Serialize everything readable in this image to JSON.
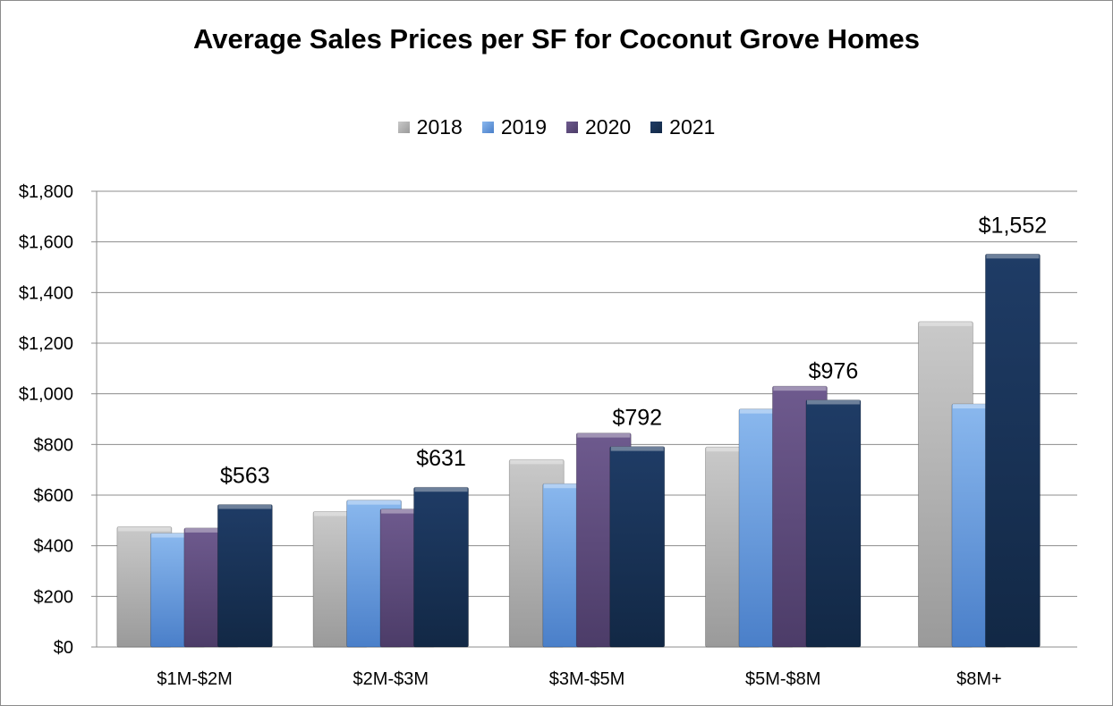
{
  "chart_data": {
    "type": "bar",
    "title": "Average Sales Prices per SF for Coconut Grove Homes",
    "xlabel": "",
    "ylabel": "",
    "ylim": [
      0,
      1800
    ],
    "y_ticks": [
      0,
      200,
      400,
      600,
      800,
      1000,
      1200,
      1400,
      1600,
      1800
    ],
    "y_tick_labels": [
      "$0",
      "$200",
      "$400",
      "$600",
      "$800",
      "$1,000",
      "$1,200",
      "$1,400",
      "$1,600",
      "$1,800"
    ],
    "grid": true,
    "legend_position": "top-center",
    "categories": [
      "$1M-$2M",
      "$2M-$3M",
      "$3M-$5M",
      "$5M-$8M",
      "$8M+"
    ],
    "series": [
      {
        "name": "2018",
        "values": [
          475,
          535,
          740,
          790,
          1285
        ],
        "color": "#c9c9c9",
        "color_dark": "#9a9a9a"
      },
      {
        "name": "2019",
        "values": [
          450,
          580,
          645,
          940,
          960
        ],
        "color": "#8ab8ee",
        "color_dark": "#4a7fc9"
      },
      {
        "name": "2020",
        "values": [
          470,
          545,
          845,
          1030,
          null
        ],
        "color": "#6e5a8e",
        "color_dark": "#4c3c68"
      },
      {
        "name": "2021",
        "values": [
          563,
          631,
          792,
          976,
          1552
        ],
        "color": "#1f3c66",
        "color_dark": "#122845"
      }
    ],
    "data_labels": [
      "$563",
      "$631",
      "$792",
      "$976",
      "$1,552"
    ]
  }
}
